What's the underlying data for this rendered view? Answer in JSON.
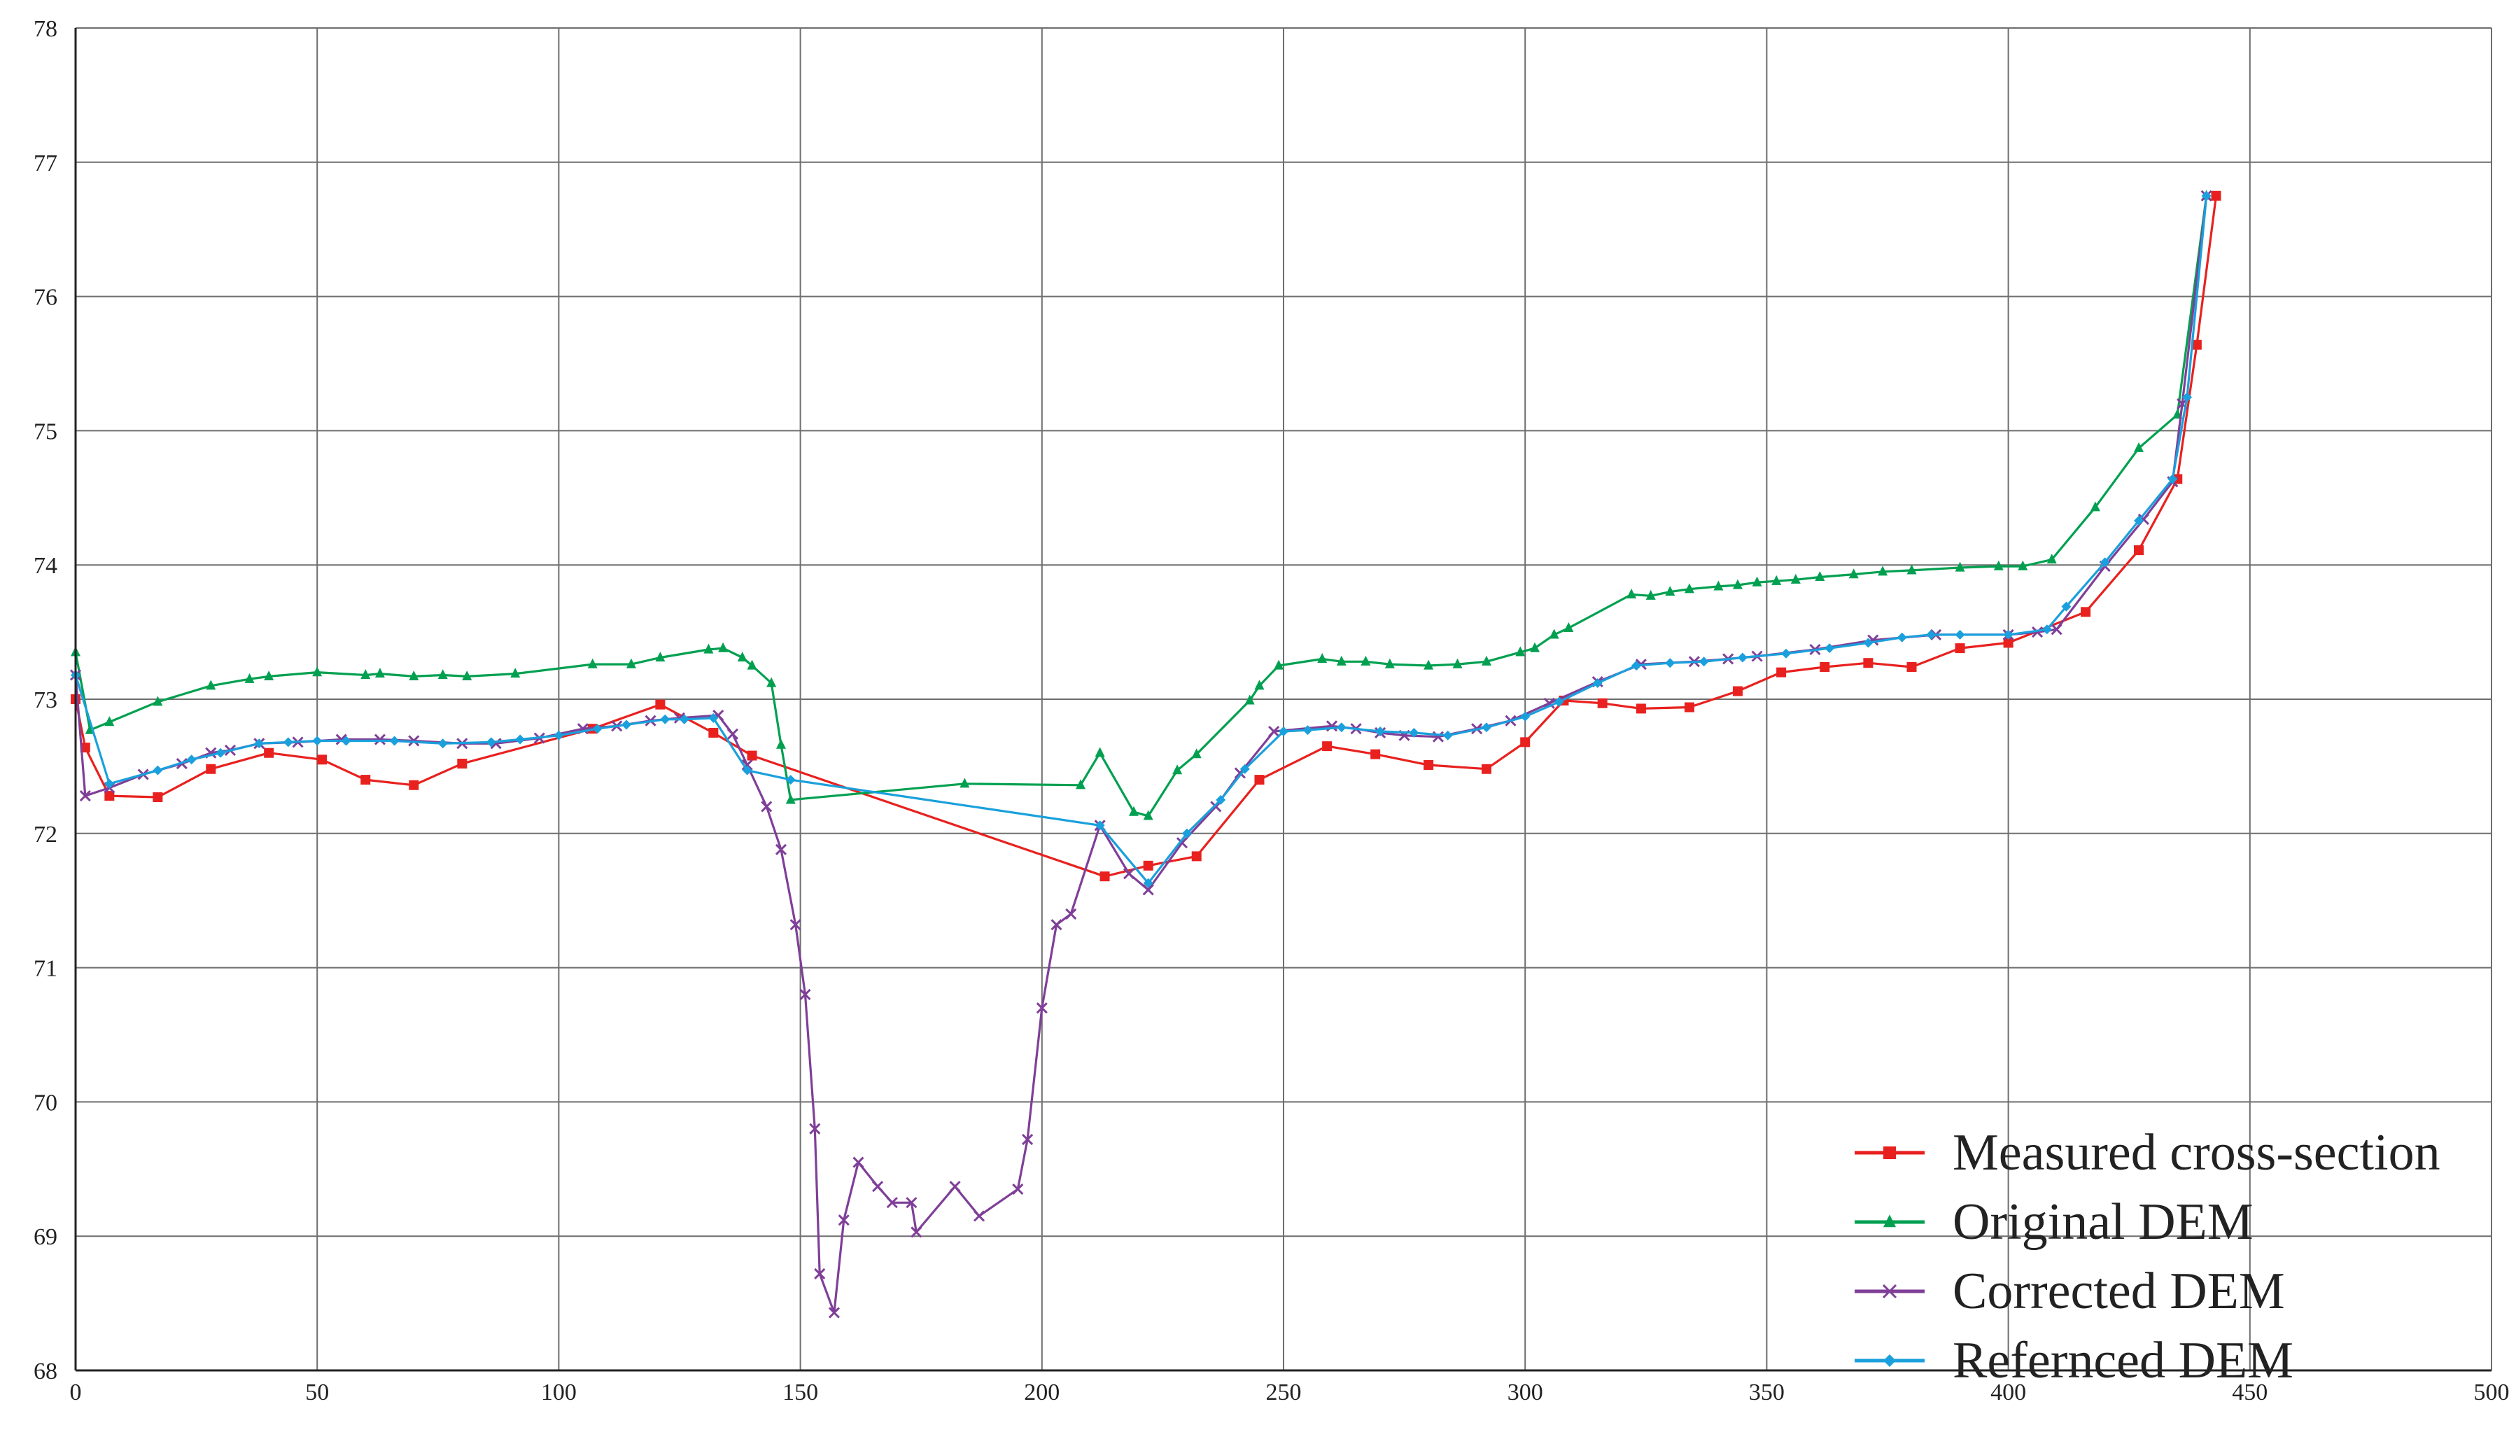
{
  "chart_data": {
    "type": "line",
    "title": "",
    "xlabel": "",
    "ylabel": "",
    "xlim": [
      0,
      500
    ],
    "ylim": [
      68,
      78
    ],
    "x_ticks": [
      0,
      50,
      100,
      150,
      200,
      250,
      300,
      350,
      400,
      450,
      500
    ],
    "y_ticks": [
      68,
      69,
      70,
      71,
      72,
      73,
      74,
      75,
      76,
      77,
      78
    ],
    "x_tick_labels": [
      "0",
      "50",
      "100",
      "150",
      "200",
      "250",
      "300",
      "350",
      "400",
      "450",
      "500"
    ],
    "y_tick_labels": [
      "68",
      "69",
      "70",
      "71",
      "72",
      "73",
      "74",
      "75",
      "76",
      "77",
      "78"
    ],
    "grid": true,
    "legend_position": "bottom-right",
    "series": [
      {
        "name": "Measured cross-section",
        "color": "#e8211f",
        "marker": "square",
        "points": [
          [
            0,
            73.0
          ],
          [
            2,
            72.64
          ],
          [
            7,
            72.28
          ],
          [
            17,
            72.27
          ],
          [
            28,
            72.48
          ],
          [
            40,
            72.6
          ],
          [
            51,
            72.55
          ],
          [
            60,
            72.4
          ],
          [
            70,
            72.36
          ],
          [
            80,
            72.52
          ],
          [
            107,
            72.78
          ],
          [
            121,
            72.96
          ],
          [
            132,
            72.75
          ],
          [
            140,
            72.58
          ],
          [
            213,
            71.68
          ],
          [
            222,
            71.76
          ],
          [
            232,
            71.83
          ],
          [
            245,
            72.4
          ],
          [
            259,
            72.65
          ],
          [
            269,
            72.59
          ],
          [
            280,
            72.51
          ],
          [
            292,
            72.48
          ],
          [
            300,
            72.68
          ],
          [
            308,
            72.99
          ],
          [
            316,
            72.97
          ],
          [
            324,
            72.93
          ],
          [
            334,
            72.94
          ],
          [
            344,
            73.06
          ],
          [
            353,
            73.2
          ],
          [
            362,
            73.24
          ],
          [
            371,
            73.27
          ],
          [
            380,
            73.24
          ],
          [
            390,
            73.38
          ],
          [
            400,
            73.42
          ],
          [
            416,
            73.65
          ],
          [
            427,
            74.11
          ],
          [
            435,
            74.64
          ],
          [
            439,
            75.64
          ],
          [
            443,
            76.75
          ]
        ]
      },
      {
        "name": "Original DEM",
        "color": "#00a050",
        "marker": "triangle",
        "points": [
          [
            0,
            73.35
          ],
          [
            3,
            72.77
          ],
          [
            7,
            72.83
          ],
          [
            17,
            72.98
          ],
          [
            28,
            73.1
          ],
          [
            36,
            73.15
          ],
          [
            40,
            73.17
          ],
          [
            50,
            73.2
          ],
          [
            60,
            73.18
          ],
          [
            63,
            73.19
          ],
          [
            70,
            73.17
          ],
          [
            76,
            73.18
          ],
          [
            81,
            73.17
          ],
          [
            91,
            73.19
          ],
          [
            107,
            73.26
          ],
          [
            115,
            73.26
          ],
          [
            121,
            73.31
          ],
          [
            131,
            73.37
          ],
          [
            134,
            73.38
          ],
          [
            138,
            73.31
          ],
          [
            140,
            73.25
          ],
          [
            144,
            73.12
          ],
          [
            146,
            72.66
          ],
          [
            148,
            72.25
          ],
          [
            184,
            72.37
          ],
          [
            208,
            72.36
          ],
          [
            212,
            72.6
          ],
          [
            219,
            72.16
          ],
          [
            222,
            72.13
          ],
          [
            228,
            72.47
          ],
          [
            232,
            72.59
          ],
          [
            243,
            72.99
          ],
          [
            245,
            73.1
          ],
          [
            249,
            73.25
          ],
          [
            258,
            73.3
          ],
          [
            262,
            73.28
          ],
          [
            267,
            73.28
          ],
          [
            272,
            73.26
          ],
          [
            280,
            73.25
          ],
          [
            286,
            73.26
          ],
          [
            292,
            73.28
          ],
          [
            299,
            73.35
          ],
          [
            302,
            73.38
          ],
          [
            306,
            73.48
          ],
          [
            309,
            73.53
          ],
          [
            322,
            73.78
          ],
          [
            326,
            73.77
          ],
          [
            330,
            73.8
          ],
          [
            334,
            73.82
          ],
          [
            340,
            73.84
          ],
          [
            344,
            73.85
          ],
          [
            348,
            73.87
          ],
          [
            352,
            73.88
          ],
          [
            356,
            73.89
          ],
          [
            361,
            73.91
          ],
          [
            368,
            73.93
          ],
          [
            374,
            73.95
          ],
          [
            380,
            73.96
          ],
          [
            390,
            73.98
          ],
          [
            398,
            73.99
          ],
          [
            403,
            73.99
          ],
          [
            409,
            74.04
          ],
          [
            418,
            74.43
          ],
          [
            427,
            74.87
          ],
          [
            435,
            75.12
          ],
          [
            441,
            76.75
          ]
        ]
      },
      {
        "name": "Corrected DEM",
        "color": "#7f3f98",
        "marker": "x",
        "points": [
          [
            0,
            73.18
          ],
          [
            2,
            72.28
          ],
          [
            7,
            72.34
          ],
          [
            14,
            72.44
          ],
          [
            22,
            72.52
          ],
          [
            28,
            72.6
          ],
          [
            32,
            72.62
          ],
          [
            38,
            72.67
          ],
          [
            46,
            72.68
          ],
          [
            55,
            72.7
          ],
          [
            63,
            72.7
          ],
          [
            70,
            72.69
          ],
          [
            80,
            72.67
          ],
          [
            87,
            72.67
          ],
          [
            96,
            72.71
          ],
          [
            105,
            72.78
          ],
          [
            112,
            72.8
          ],
          [
            119,
            72.84
          ],
          [
            125,
            72.86
          ],
          [
            133,
            72.88
          ],
          [
            136,
            72.74
          ],
          [
            139,
            72.51
          ],
          [
            143,
            72.2
          ],
          [
            146,
            71.88
          ],
          [
            149,
            71.32
          ],
          [
            151,
            70.8
          ],
          [
            153,
            69.8
          ],
          [
            154,
            68.72
          ],
          [
            157,
            68.43
          ],
          [
            159,
            69.12
          ],
          [
            162,
            69.55
          ],
          [
            166,
            69.37
          ],
          [
            169,
            69.25
          ],
          [
            173,
            69.25
          ],
          [
            174,
            69.03
          ],
          [
            182,
            69.37
          ],
          [
            187,
            69.15
          ],
          [
            195,
            69.35
          ],
          [
            197,
            69.72
          ],
          [
            200,
            70.7
          ],
          [
            203,
            71.32
          ],
          [
            206,
            71.4
          ],
          [
            212,
            72.06
          ],
          [
            218,
            71.7
          ],
          [
            222,
            71.58
          ],
          [
            229,
            71.93
          ],
          [
            236,
            72.2
          ],
          [
            241,
            72.45
          ],
          [
            248,
            72.76
          ],
          [
            260,
            72.8
          ],
          [
            265,
            72.78
          ],
          [
            270,
            72.75
          ],
          [
            275,
            72.73
          ],
          [
            282,
            72.72
          ],
          [
            290,
            72.78
          ],
          [
            297,
            72.84
          ],
          [
            305,
            72.97
          ],
          [
            315,
            73.13
          ],
          [
            324,
            73.26
          ],
          [
            335,
            73.28
          ],
          [
            342,
            73.3
          ],
          [
            348,
            73.32
          ],
          [
            360,
            73.37
          ],
          [
            372,
            73.44
          ],
          [
            385,
            73.48
          ],
          [
            400,
            73.48
          ],
          [
            406,
            73.5
          ],
          [
            410,
            73.52
          ],
          [
            420,
            73.99
          ],
          [
            428,
            74.34
          ],
          [
            434,
            74.62
          ],
          [
            436,
            75.2
          ],
          [
            441,
            76.75
          ]
        ]
      },
      {
        "name": "Refernced DEM",
        "color": "#1aa0dc",
        "marker": "diamond",
        "points": [
          [
            0,
            73.18
          ],
          [
            7,
            72.37
          ],
          [
            17,
            72.47
          ],
          [
            24,
            72.55
          ],
          [
            30,
            72.6
          ],
          [
            38,
            72.67
          ],
          [
            44,
            72.68
          ],
          [
            50,
            72.69
          ],
          [
            56,
            72.69
          ],
          [
            66,
            72.69
          ],
          [
            76,
            72.67
          ],
          [
            86,
            72.68
          ],
          [
            92,
            72.7
          ],
          [
            100,
            72.73
          ],
          [
            108,
            72.78
          ],
          [
            114,
            72.81
          ],
          [
            122,
            72.85
          ],
          [
            126,
            72.85
          ],
          [
            132,
            72.86
          ],
          [
            139,
            72.47
          ],
          [
            148,
            72.4
          ],
          [
            212,
            72.06
          ],
          [
            222,
            71.63
          ],
          [
            230,
            72.0
          ],
          [
            237,
            72.25
          ],
          [
            242,
            72.48
          ],
          [
            250,
            72.76
          ],
          [
            255,
            72.77
          ],
          [
            262,
            72.79
          ],
          [
            270,
            72.76
          ],
          [
            277,
            72.75
          ],
          [
            284,
            72.73
          ],
          [
            292,
            72.79
          ],
          [
            300,
            72.87
          ],
          [
            307,
            72.98
          ],
          [
            315,
            73.12
          ],
          [
            323,
            73.25
          ],
          [
            330,
            73.27
          ],
          [
            337,
            73.28
          ],
          [
            345,
            73.31
          ],
          [
            354,
            73.34
          ],
          [
            363,
            73.38
          ],
          [
            371,
            73.42
          ],
          [
            378,
            73.46
          ],
          [
            384,
            73.48
          ],
          [
            390,
            73.48
          ],
          [
            400,
            73.48
          ],
          [
            408,
            73.52
          ],
          [
            412,
            73.69
          ],
          [
            420,
            74.02
          ],
          [
            427,
            74.33
          ],
          [
            434,
            74.64
          ],
          [
            437,
            75.25
          ],
          [
            441,
            76.75
          ]
        ]
      }
    ]
  }
}
